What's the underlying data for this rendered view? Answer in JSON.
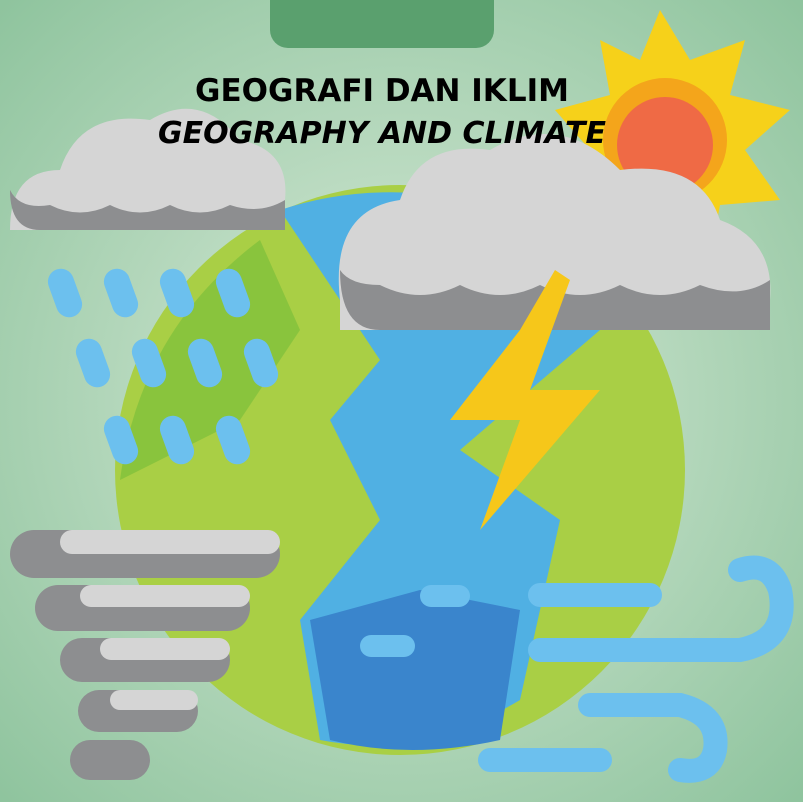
{
  "header": {
    "title": "GEOGRAFI DAN IKLIM",
    "subtitle": "GEOGRAPHY AND CLIMATE"
  }
}
